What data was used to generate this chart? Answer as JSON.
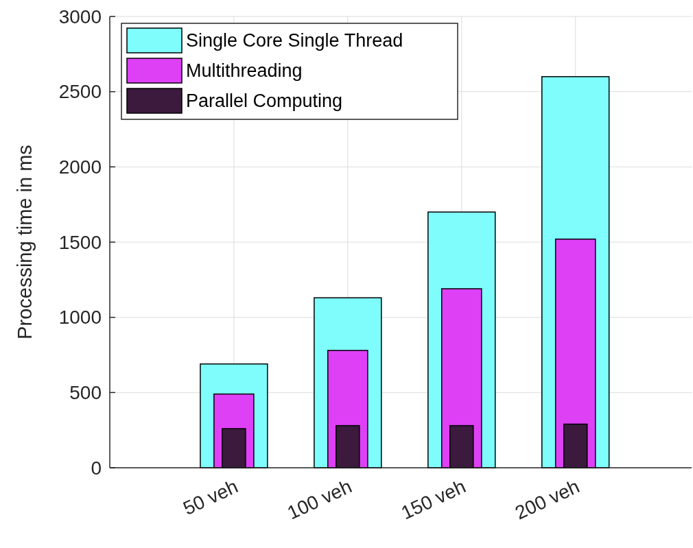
{
  "chart_data": {
    "type": "bar",
    "ylabel": "Processing time in ms",
    "categories": [
      "50 veh",
      "100 veh",
      "150 veh",
      "200 veh"
    ],
    "series": [
      {
        "name": "Single Core Single Thread",
        "color": "#7ffdfd",
        "values": [
          690,
          1130,
          1700,
          2600
        ]
      },
      {
        "name": "Multithreading",
        "color": "#de40f6",
        "values": [
          490,
          780,
          1190,
          1520
        ]
      },
      {
        "name": "Parallel Computing",
        "color": "#3b1a3e",
        "values": [
          260,
          280,
          280,
          290
        ]
      }
    ],
    "ylim": [
      0,
      3000
    ],
    "yticks": [
      0,
      500,
      1000,
      1500,
      2000,
      2500,
      3000
    ],
    "grid": true,
    "legend": "top left"
  }
}
